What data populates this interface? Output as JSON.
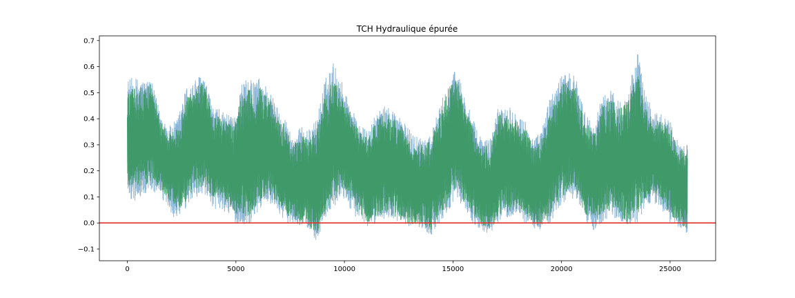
{
  "chart_data": {
    "type": "line",
    "title": "TCH Hydraulique épurée",
    "xlabel": "",
    "ylabel": "",
    "xlim": [
      -1290,
      27100
    ],
    "ylim": [
      -0.145,
      0.718
    ],
    "x_ticks": [
      0,
      5000,
      10000,
      15000,
      20000,
      25000
    ],
    "x_tick_labels": [
      "0",
      "5000",
      "10000",
      "15000",
      "20000",
      "25000"
    ],
    "y_ticks": [
      -0.1,
      0.0,
      0.1,
      0.2,
      0.3,
      0.4,
      0.5,
      0.6,
      0.7
    ],
    "y_tick_labels": [
      "−0.1",
      "0.0",
      "0.1",
      "0.2",
      "0.3",
      "0.4",
      "0.5",
      "0.6",
      "0.7"
    ],
    "grid": false,
    "legend": "none",
    "series": [
      {
        "color": "#7faed3",
        "opacity": 0.9,
        "envelope_x": [
          0,
          300,
          700,
          1100,
          1500,
          1900,
          2300,
          2700,
          3100,
          3500,
          3900,
          4400,
          4900,
          5300,
          5700,
          6100,
          6500,
          6900,
          7300,
          7600,
          8000,
          8400,
          8700,
          9100,
          9500,
          9900,
          10300,
          10700,
          11100,
          11500,
          11900,
          12400,
          12800,
          13200,
          13600,
          14000,
          14400,
          14800,
          15200,
          15500,
          15900,
          16300,
          16700,
          17100,
          17500,
          17900,
          18300,
          18700,
          19100,
          19500,
          19900,
          20300,
          20700,
          21100,
          21500,
          21900,
          22300,
          22700,
          23100,
          23500,
          23800,
          24200,
          24600,
          25000,
          25400,
          25800
        ],
        "upper": [
          0.55,
          0.56,
          0.55,
          0.55,
          0.43,
          0.37,
          0.4,
          0.52,
          0.55,
          0.58,
          0.45,
          0.43,
          0.4,
          0.55,
          0.55,
          0.56,
          0.52,
          0.45,
          0.4,
          0.33,
          0.37,
          0.36,
          0.4,
          0.55,
          0.62,
          0.54,
          0.45,
          0.38,
          0.35,
          0.43,
          0.45,
          0.43,
          0.38,
          0.34,
          0.33,
          0.35,
          0.45,
          0.55,
          0.6,
          0.5,
          0.4,
          0.33,
          0.32,
          0.45,
          0.46,
          0.43,
          0.4,
          0.32,
          0.36,
          0.5,
          0.55,
          0.6,
          0.55,
          0.42,
          0.38,
          0.5,
          0.51,
          0.47,
          0.52,
          0.67,
          0.52,
          0.43,
          0.42,
          0.4,
          0.3,
          0.3
        ],
        "lower": [
          0.1,
          0.08,
          0.1,
          0.12,
          0.1,
          0.05,
          0.0,
          0.05,
          0.1,
          0.1,
          0.05,
          0.05,
          0.0,
          -0.02,
          0.0,
          0.05,
          0.08,
          0.05,
          0.0,
          0.0,
          -0.01,
          -0.03,
          -0.07,
          0.0,
          0.05,
          0.1,
          0.05,
          0.0,
          -0.02,
          0.0,
          0.02,
          0.0,
          -0.01,
          -0.02,
          -0.02,
          -0.05,
          0.0,
          0.05,
          0.1,
          0.05,
          0.0,
          -0.03,
          -0.05,
          0.0,
          0.02,
          0.03,
          0.0,
          -0.02,
          -0.03,
          0.0,
          0.05,
          0.1,
          0.08,
          0.0,
          -0.03,
          0.0,
          0.03,
          0.0,
          -0.02,
          0.0,
          0.05,
          0.08,
          0.05,
          0.0,
          -0.02,
          -0.04
        ],
        "center": [
          0.32,
          0.32,
          0.33,
          0.35,
          0.27,
          0.2,
          0.2,
          0.28,
          0.32,
          0.33,
          0.25,
          0.24,
          0.2,
          0.25,
          0.28,
          0.3,
          0.3,
          0.25,
          0.2,
          0.16,
          0.17,
          0.16,
          0.16,
          0.26,
          0.33,
          0.32,
          0.25,
          0.19,
          0.17,
          0.22,
          0.24,
          0.22,
          0.18,
          0.16,
          0.15,
          0.15,
          0.23,
          0.3,
          0.35,
          0.28,
          0.2,
          0.15,
          0.13,
          0.23,
          0.24,
          0.23,
          0.2,
          0.15,
          0.16,
          0.25,
          0.3,
          0.35,
          0.32,
          0.21,
          0.17,
          0.25,
          0.27,
          0.24,
          0.25,
          0.33,
          0.28,
          0.25,
          0.23,
          0.2,
          0.14,
          0.13
        ]
      },
      {
        "color": "#2e9250",
        "opacity": 0.82,
        "envelope_x": [
          0,
          300,
          700,
          1100,
          1500,
          1900,
          2300,
          2700,
          3100,
          3500,
          3900,
          4400,
          4900,
          5300,
          5700,
          6100,
          6500,
          6900,
          7300,
          7600,
          8000,
          8400,
          8700,
          9100,
          9500,
          9900,
          10300,
          10700,
          11100,
          11500,
          11900,
          12400,
          12800,
          13200,
          13600,
          14000,
          14400,
          14800,
          15200,
          15500,
          15900,
          16300,
          16700,
          17100,
          17500,
          17900,
          18300,
          18700,
          19100,
          19500,
          19900,
          20300,
          20700,
          21100,
          21500,
          21900,
          22300,
          22700,
          23100,
          23500,
          23800,
          24200,
          24600,
          25000,
          25400,
          25800
        ],
        "upper": [
          0.5,
          0.52,
          0.52,
          0.54,
          0.4,
          0.34,
          0.37,
          0.48,
          0.52,
          0.54,
          0.42,
          0.4,
          0.37,
          0.5,
          0.52,
          0.52,
          0.48,
          0.42,
          0.37,
          0.3,
          0.33,
          0.34,
          0.37,
          0.5,
          0.55,
          0.5,
          0.42,
          0.35,
          0.33,
          0.4,
          0.42,
          0.4,
          0.35,
          0.31,
          0.3,
          0.32,
          0.42,
          0.52,
          0.55,
          0.47,
          0.37,
          0.3,
          0.3,
          0.42,
          0.43,
          0.4,
          0.37,
          0.3,
          0.33,
          0.46,
          0.52,
          0.56,
          0.51,
          0.39,
          0.35,
          0.46,
          0.48,
          0.44,
          0.48,
          0.58,
          0.48,
          0.4,
          0.39,
          0.37,
          0.29,
          0.3
        ],
        "lower": [
          0.13,
          0.12,
          0.13,
          0.15,
          0.13,
          0.09,
          0.05,
          0.08,
          0.13,
          0.14,
          0.1,
          0.09,
          0.04,
          0.01,
          0.03,
          0.08,
          0.11,
          0.08,
          0.03,
          0.02,
          0.0,
          -0.02,
          -0.05,
          0.03,
          0.08,
          0.12,
          0.08,
          0.03,
          0.0,
          0.02,
          0.04,
          0.02,
          0.0,
          -0.01,
          -0.01,
          -0.03,
          0.02,
          0.08,
          0.13,
          0.08,
          0.03,
          -0.01,
          -0.03,
          0.02,
          0.04,
          0.05,
          0.02,
          0.0,
          -0.02,
          0.02,
          0.08,
          0.13,
          0.11,
          0.03,
          -0.01,
          0.03,
          0.05,
          0.02,
          0.0,
          0.03,
          0.08,
          0.11,
          0.08,
          0.03,
          0.0,
          -0.03
        ],
        "center": [
          0.31,
          0.32,
          0.32,
          0.35,
          0.26,
          0.21,
          0.21,
          0.28,
          0.32,
          0.34,
          0.26,
          0.24,
          0.2,
          0.25,
          0.27,
          0.3,
          0.29,
          0.25,
          0.2,
          0.16,
          0.16,
          0.16,
          0.16,
          0.26,
          0.31,
          0.31,
          0.25,
          0.19,
          0.16,
          0.21,
          0.23,
          0.21,
          0.17,
          0.15,
          0.14,
          0.14,
          0.22,
          0.3,
          0.34,
          0.27,
          0.2,
          0.14,
          0.13,
          0.22,
          0.23,
          0.22,
          0.19,
          0.15,
          0.15,
          0.24,
          0.3,
          0.34,
          0.31,
          0.21,
          0.17,
          0.24,
          0.26,
          0.23,
          0.24,
          0.3,
          0.28,
          0.25,
          0.23,
          0.2,
          0.14,
          0.13
        ]
      }
    ],
    "reference_line": {
      "y": 0.0,
      "color": "#e0302a"
    }
  }
}
